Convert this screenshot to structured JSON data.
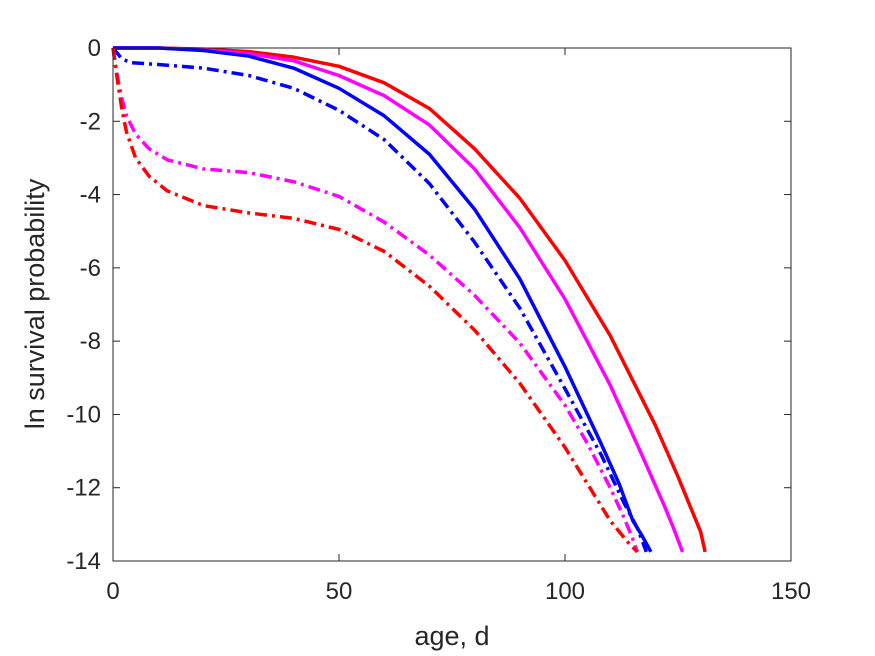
{
  "chart_data": {
    "type": "line",
    "title": "",
    "xlabel": "age, d",
    "ylabel": "ln survival probability",
    "xlim": [
      0,
      150
    ],
    "ylim": [
      -14,
      0
    ],
    "xticks": [
      0,
      50,
      100,
      150
    ],
    "yticks": [
      0,
      -2,
      -4,
      -6,
      -8,
      -10,
      -12,
      -14
    ],
    "grid": false,
    "legend": "none",
    "series": [
      {
        "color": "#ff0000",
        "style": "solid",
        "x": [
          0,
          10,
          20,
          30,
          40,
          50,
          60,
          70,
          80,
          90,
          100,
          110,
          120,
          125,
          128,
          130,
          131
        ],
        "y": [
          0,
          0,
          -0.03,
          -0.1,
          -0.25,
          -0.5,
          -0.95,
          -1.65,
          -2.75,
          -4.1,
          -5.8,
          -7.85,
          -10.3,
          -11.7,
          -12.6,
          -13.2,
          -13.75
        ]
      },
      {
        "color": "#ff00ff",
        "style": "solid",
        "x": [
          0,
          10,
          20,
          30,
          40,
          50,
          60,
          70,
          80,
          90,
          100,
          110,
          117,
          122,
          124,
          126
        ],
        "y": [
          0,
          0,
          -0.05,
          -0.15,
          -0.35,
          -0.75,
          -1.3,
          -2.1,
          -3.3,
          -4.9,
          -6.85,
          -9.2,
          -11.1,
          -12.5,
          -13.1,
          -13.75
        ]
      },
      {
        "color": "#0000ff",
        "style": "solid",
        "x": [
          0,
          10,
          20,
          30,
          40,
          50,
          60,
          70,
          80,
          90,
          100,
          108,
          112,
          115,
          117,
          119
        ],
        "y": [
          0,
          0,
          -0.07,
          -0.22,
          -0.55,
          -1.1,
          -1.85,
          -2.9,
          -4.4,
          -6.3,
          -8.7,
          -10.8,
          -11.9,
          -12.9,
          -13.3,
          -13.75
        ]
      },
      {
        "color": "#0000ff",
        "style": "dashdot",
        "x": [
          0,
          1,
          2,
          4,
          10,
          20,
          30,
          40,
          50,
          60,
          70,
          80,
          90,
          100,
          108,
          113,
          116,
          118
        ],
        "y": [
          0,
          -0.15,
          -0.3,
          -0.4,
          -0.45,
          -0.55,
          -0.75,
          -1.1,
          -1.7,
          -2.5,
          -3.7,
          -5.3,
          -7.1,
          -9.3,
          -11.1,
          -12.4,
          -13.1,
          -13.75
        ]
      },
      {
        "color": "#ff00ff",
        "style": "dashdot",
        "x": [
          0,
          1,
          2,
          3,
          5,
          8,
          12,
          20,
          30,
          40,
          50,
          60,
          70,
          80,
          90,
          100,
          105,
          110,
          113,
          115,
          116
        ],
        "y": [
          0,
          -0.8,
          -1.4,
          -1.85,
          -2.35,
          -2.75,
          -3.05,
          -3.3,
          -3.4,
          -3.65,
          -4.05,
          -4.75,
          -5.65,
          -6.75,
          -8.05,
          -9.75,
          -10.8,
          -12.0,
          -12.8,
          -13.4,
          -13.75
        ]
      },
      {
        "color": "#ff0000",
        "style": "dashdot",
        "x": [
          0,
          1,
          2,
          3,
          5,
          8,
          12,
          20,
          30,
          40,
          50,
          60,
          70,
          80,
          90,
          100,
          105,
          110,
          114,
          116
        ],
        "y": [
          0,
          -0.9,
          -1.7,
          -2.3,
          -3.0,
          -3.5,
          -3.9,
          -4.3,
          -4.5,
          -4.65,
          -4.95,
          -5.55,
          -6.5,
          -7.7,
          -9.15,
          -10.9,
          -11.9,
          -12.9,
          -13.5,
          -13.75
        ]
      }
    ]
  }
}
